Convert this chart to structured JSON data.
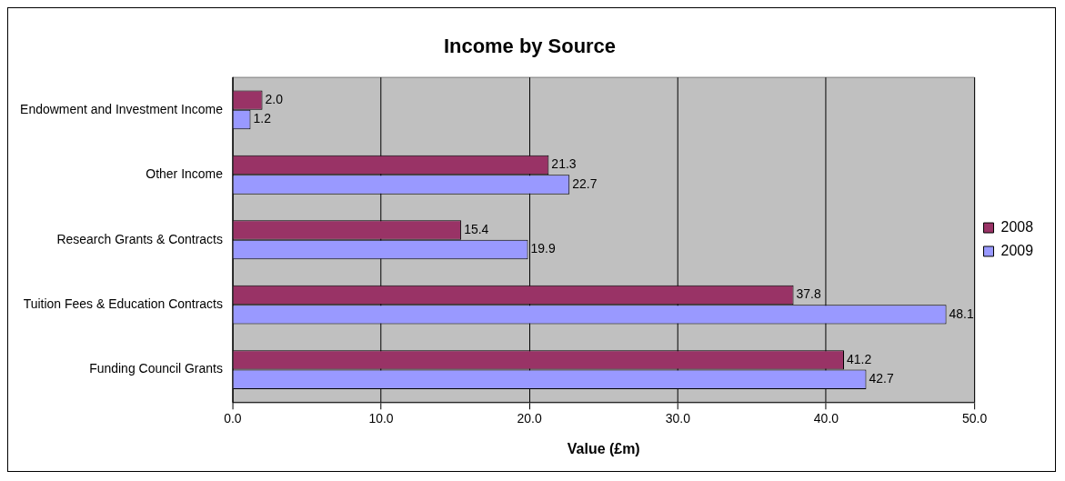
{
  "chart_data": {
    "type": "bar",
    "orientation": "horizontal",
    "title": "Income by Source",
    "xlabel": "Value (£m)",
    "categories": [
      "Endowment and Investment Income",
      "Other Income",
      "Research Grants & Contracts",
      "Tuition Fees & Education Contracts",
      "Funding Council Grants"
    ],
    "series": [
      {
        "name": "2008",
        "color": "#993366",
        "values": [
          2.0,
          21.3,
          15.4,
          37.8,
          41.2
        ],
        "value_labels": [
          "2.0",
          "21.3",
          "15.4",
          "37.8",
          "41.2"
        ]
      },
      {
        "name": "2009",
        "color": "#9999ff",
        "values": [
          1.2,
          22.7,
          19.9,
          48.1,
          42.7
        ],
        "value_labels": [
          "1.2",
          "22.7",
          "19.9",
          "48.1",
          "42.7"
        ]
      }
    ],
    "xlim": [
      0,
      50
    ],
    "xticks": [
      {
        "value": 0,
        "label": "0.0"
      },
      {
        "value": 10,
        "label": "10.0"
      },
      {
        "value": 20,
        "label": "20.0"
      },
      {
        "value": 30,
        "label": "30.0"
      },
      {
        "value": 40,
        "label": "40.0"
      },
      {
        "value": 50,
        "label": "50.0"
      }
    ],
    "grid": "x",
    "legend": "right"
  }
}
